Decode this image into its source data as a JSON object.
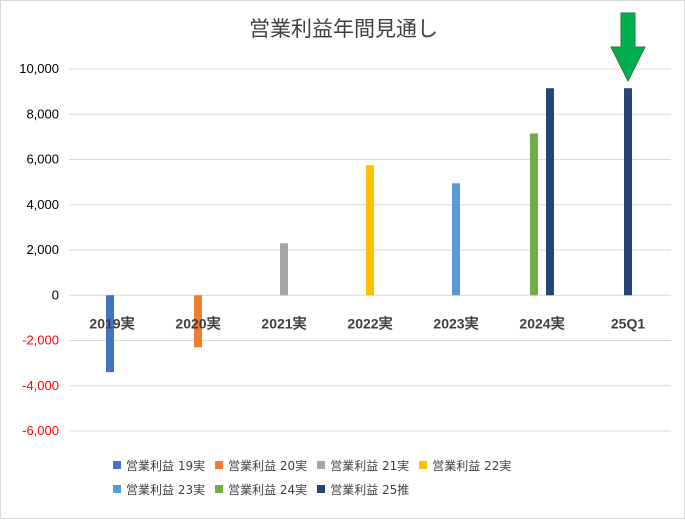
{
  "chart_data": {
    "type": "bar",
    "title": "営業利益年間見通し",
    "categories": [
      "2019実",
      "2020実",
      "2021実",
      "2022実",
      "2023実",
      "2024実",
      "25Q1"
    ],
    "ylim": [
      -6000,
      10000
    ],
    "yticks": [
      10000,
      8000,
      6000,
      4000,
      2000,
      0,
      -2000,
      -4000,
      -6000
    ],
    "ytick_labels": [
      "10,000",
      "8,000",
      "6,000",
      "4,000",
      "2,000",
      "0",
      "-2,000",
      "-4,000",
      "-6,000"
    ],
    "negative_tick_color": "#ff0000",
    "grid": true,
    "legend_position": "bottom",
    "series": [
      {
        "name": "営業利益 19実",
        "color": "#4472c4",
        "values": [
          -3400,
          null,
          null,
          null,
          null,
          null,
          null
        ]
      },
      {
        "name": "営業利益 20実",
        "color": "#ed7d31",
        "values": [
          null,
          -2300,
          null,
          null,
          null,
          null,
          null
        ]
      },
      {
        "name": "営業利益 21実",
        "color": "#a5a5a5",
        "values": [
          null,
          null,
          2300,
          null,
          null,
          null,
          null
        ]
      },
      {
        "name": "営業利益 22実",
        "color": "#ffc000",
        "values": [
          null,
          null,
          null,
          5750,
          null,
          null,
          null
        ]
      },
      {
        "name": "営業利益 23実",
        "color": "#5b9bd5",
        "values": [
          null,
          null,
          null,
          null,
          4950,
          null,
          null
        ]
      },
      {
        "name": "営業利益 24実",
        "color": "#70ad47",
        "values": [
          null,
          null,
          null,
          null,
          null,
          7150,
          null
        ]
      },
      {
        "name": "営業利益 25推",
        "color": "#264478",
        "values": [
          null,
          null,
          null,
          null,
          null,
          9150,
          9150
        ]
      }
    ],
    "annotations": [
      {
        "type": "arrow",
        "description": "green down arrow above 25Q1",
        "color": "#00b050",
        "category": "25Q1"
      }
    ]
  }
}
